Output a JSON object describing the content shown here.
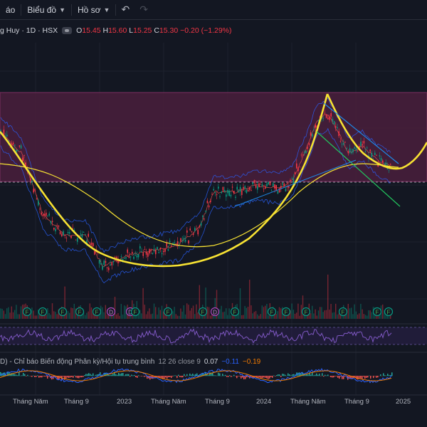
{
  "toolbar": {
    "partial_item": "áo",
    "chart_menu": "Biểu đồ",
    "profile_menu": "Hồ sơ",
    "undo_icon": "undo-icon",
    "redo_icon": "redo-icon"
  },
  "legend": {
    "symbol": "g Huy · 1D · HSX",
    "open_key": "O",
    "open": "15.45",
    "high_key": "H",
    "high": "15.60",
    "low_key": "L",
    "low": "15.25",
    "close_key": "C",
    "close": "15.30",
    "change": "−0.20 (−1.29%)"
  },
  "macd": {
    "title": "D) - Chỉ báo Biến động Phân kỳ/Hội tụ trung bình",
    "params": "12 26 close 9",
    "v1": "0.07",
    "v2": "−0.11",
    "v3": "−0.19"
  },
  "time_axis": [
    "Tháng Năm",
    "Tháng 9",
    "2023",
    "Tháng Năm",
    "Tháng 9",
    "2024",
    "Tháng Năm",
    "Tháng 9",
    "2025"
  ],
  "event_markers": [
    "F",
    "F",
    "F",
    "F",
    "F",
    "D",
    "D",
    "F",
    "F",
    "F",
    "D",
    "F",
    "F",
    "F",
    "F",
    "F",
    "F",
    "F"
  ],
  "colors": {
    "background": "#131722",
    "zone_fill": "#4a1f3c",
    "cup_curve": "#f7e233",
    "up": "#089981",
    "down": "#f23645",
    "rsi": "#7e57c2",
    "macd_line": "#2962ff",
    "signal_line": "#f57c00"
  }
}
